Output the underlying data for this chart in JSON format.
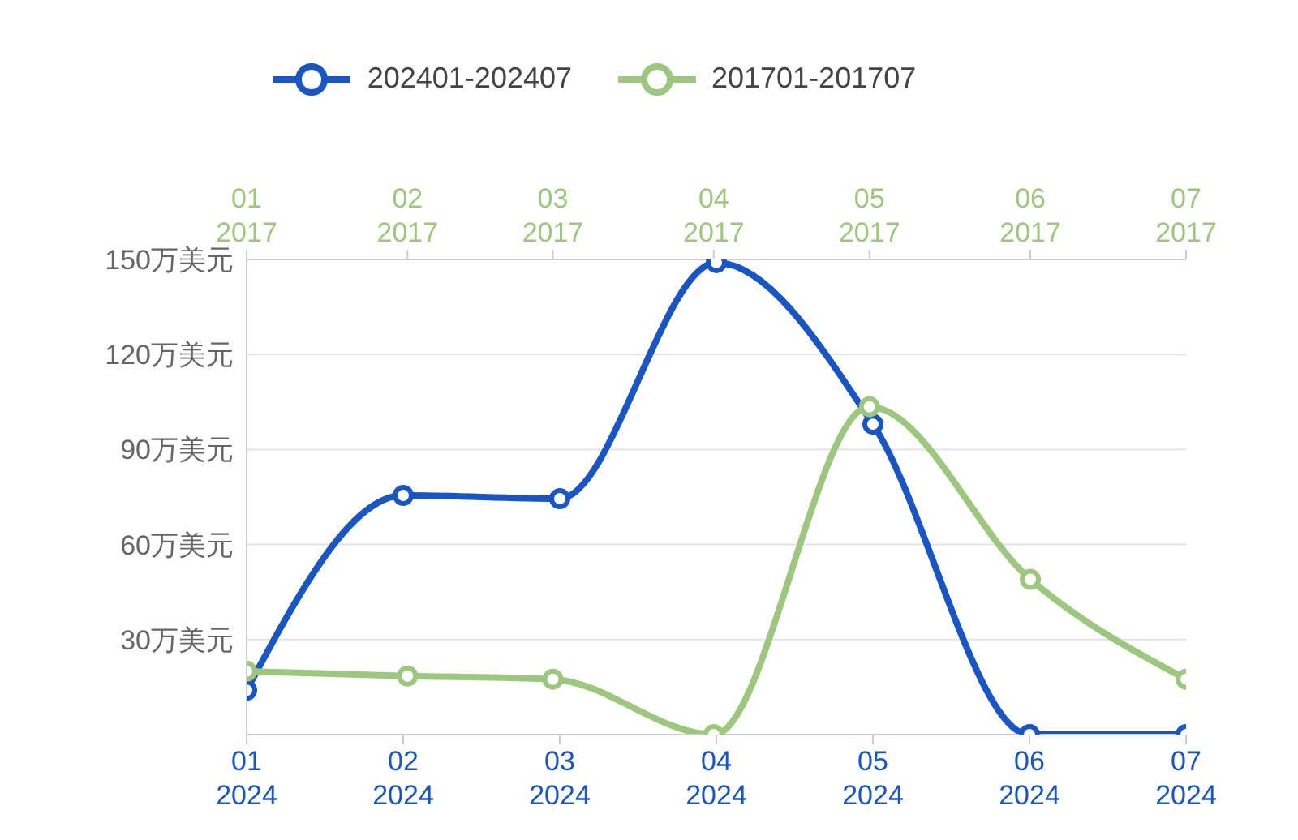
{
  "chart_data": {
    "type": "line",
    "categories": [
      "01\n2024",
      "02\n2024",
      "03\n2024",
      "04\n2024",
      "05\n2024",
      "06\n2024",
      "07\n2024"
    ],
    "x2lim": [
      "2017-01",
      "2017-07"
    ],
    "x2ticks": [
      {
        "value": "2017-01",
        "label": "01\n2017"
      },
      {
        "value": "2017-02",
        "label": "02\n2017"
      },
      {
        "value": "2017-03",
        "label": "03\n2017"
      },
      {
        "value": "2017-04",
        "label": "04\n2017"
      },
      {
        "value": "2017-05",
        "label": "05\n2017"
      },
      {
        "value": "2017-06",
        "label": "06\n2017"
      },
      {
        "value": "2017-07",
        "label": "07\n2017"
      }
    ],
    "series": [
      {
        "name": "202401-202407",
        "color": "#1a55c4",
        "values": [
          14,
          75.5,
          74.5,
          149,
          98,
          0,
          0
        ]
      },
      {
        "name": "201701-201707",
        "color": "#9dc77e",
        "axis": "x2",
        "x": [
          "2017-01",
          "2017-02",
          "2017-03",
          "2017-04",
          "2017-05",
          "2017-06",
          "2017-07"
        ],
        "values": [
          20,
          18.5,
          17.5,
          0,
          103.5,
          49,
          17.5
        ]
      }
    ],
    "ylim": [
      0,
      150
    ],
    "yticks": [
      {
        "value": 0,
        "label": null
      },
      {
        "value": 30,
        "label": "30万美元"
      },
      {
        "value": 60,
        "label": "60万美元"
      },
      {
        "value": 90,
        "label": "90万美元"
      },
      {
        "value": 120,
        "label": "120万美元"
      },
      {
        "value": 150,
        "label": "150万美元"
      }
    ],
    "grid": "y",
    "legend": "top",
    "marker": "circle",
    "line_style": "solid"
  }
}
